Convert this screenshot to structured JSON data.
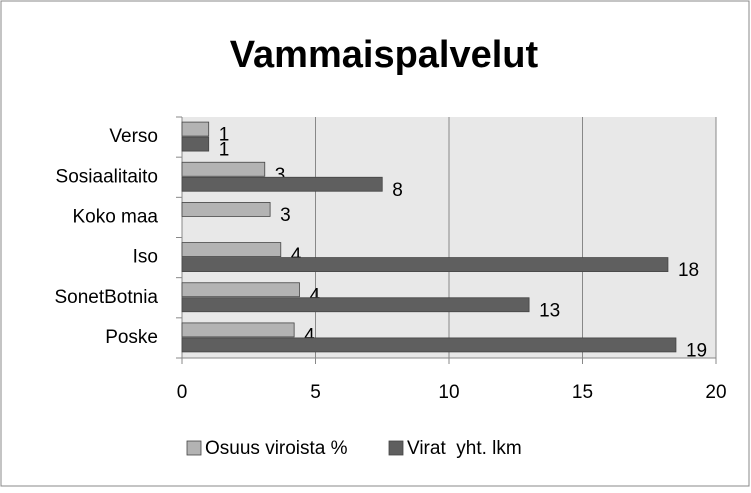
{
  "chart_data": {
    "type": "hbar",
    "title": "Vammaispalvelut",
    "categories": [
      "Verso",
      "Sosiaalitaito",
      "Koko maa",
      "Iso",
      "SonetBotnia",
      "Poske"
    ],
    "series": [
      {
        "name": "Osuus viroista %",
        "color": "#b3b3b3",
        "values": [
          1,
          3.1,
          3.3,
          3.7,
          4.4,
          4.2
        ],
        "value_labels": [
          "1",
          "3",
          "3",
          "4",
          "4",
          "4"
        ]
      },
      {
        "name": "Virat  yht. lkm",
        "color": "#5f5f5f",
        "values": [
          1,
          7.5,
          null,
          18.2,
          13,
          18.5
        ],
        "value_labels": [
          "1",
          "8",
          null,
          "18",
          "13",
          "19"
        ]
      }
    ],
    "xlim": [
      0,
      20
    ],
    "xticks": [
      0,
      5,
      10,
      15,
      20
    ],
    "grid": true,
    "legend": "bottom"
  }
}
